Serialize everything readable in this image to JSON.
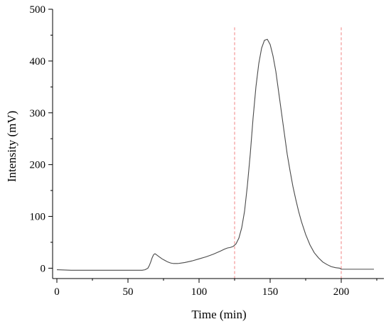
{
  "chart_data": {
    "type": "line",
    "title": "",
    "xlabel": "Time (min)",
    "ylabel": "Intensity (mV)",
    "xlim": [
      -3,
      230
    ],
    "ylim": [
      -20,
      500
    ],
    "xticks": [
      0,
      50,
      100,
      150,
      200
    ],
    "yticks": [
      0,
      100,
      200,
      300,
      400,
      500
    ],
    "grid": false,
    "legend": "none",
    "reference_lines_x": [
      125,
      200
    ],
    "colors": {
      "series": "#4a4a4a",
      "reference": "#f08080",
      "axis": "#000000"
    },
    "series": [
      {
        "x": [
          0,
          10,
          20,
          30,
          40,
          50,
          55,
          60,
          62,
          64,
          65,
          66,
          67,
          68,
          69,
          70,
          72,
          74,
          76,
          78,
          80,
          82,
          85,
          90,
          95,
          100,
          105,
          110,
          115,
          118,
          120,
          122,
          124,
          126,
          128,
          130,
          132,
          134,
          136,
          138,
          140,
          142,
          144,
          146,
          148,
          150,
          152,
          154,
          156,
          158,
          160,
          162,
          164,
          166,
          168,
          170,
          172,
          175,
          178,
          181,
          184,
          187,
          190,
          193,
          196,
          199,
          200,
          202,
          205,
          210,
          215,
          220,
          223
        ],
        "y": [
          -3,
          -4,
          -4,
          -4,
          -4,
          -4,
          -4,
          -4,
          -3,
          0,
          5,
          12,
          20,
          26,
          28,
          26,
          22,
          18,
          15,
          12,
          10,
          9,
          9,
          11,
          14,
          18,
          22,
          27,
          33,
          37,
          39,
          40,
          42,
          47,
          58,
          78,
          110,
          160,
          220,
          290,
          350,
          395,
          425,
          440,
          442,
          432,
          410,
          380,
          340,
          300,
          260,
          220,
          188,
          158,
          133,
          110,
          90,
          65,
          45,
          30,
          20,
          12,
          7,
          3,
          1,
          0,
          -2,
          -2,
          -2,
          -2,
          -2,
          -2,
          -2
        ]
      }
    ]
  }
}
